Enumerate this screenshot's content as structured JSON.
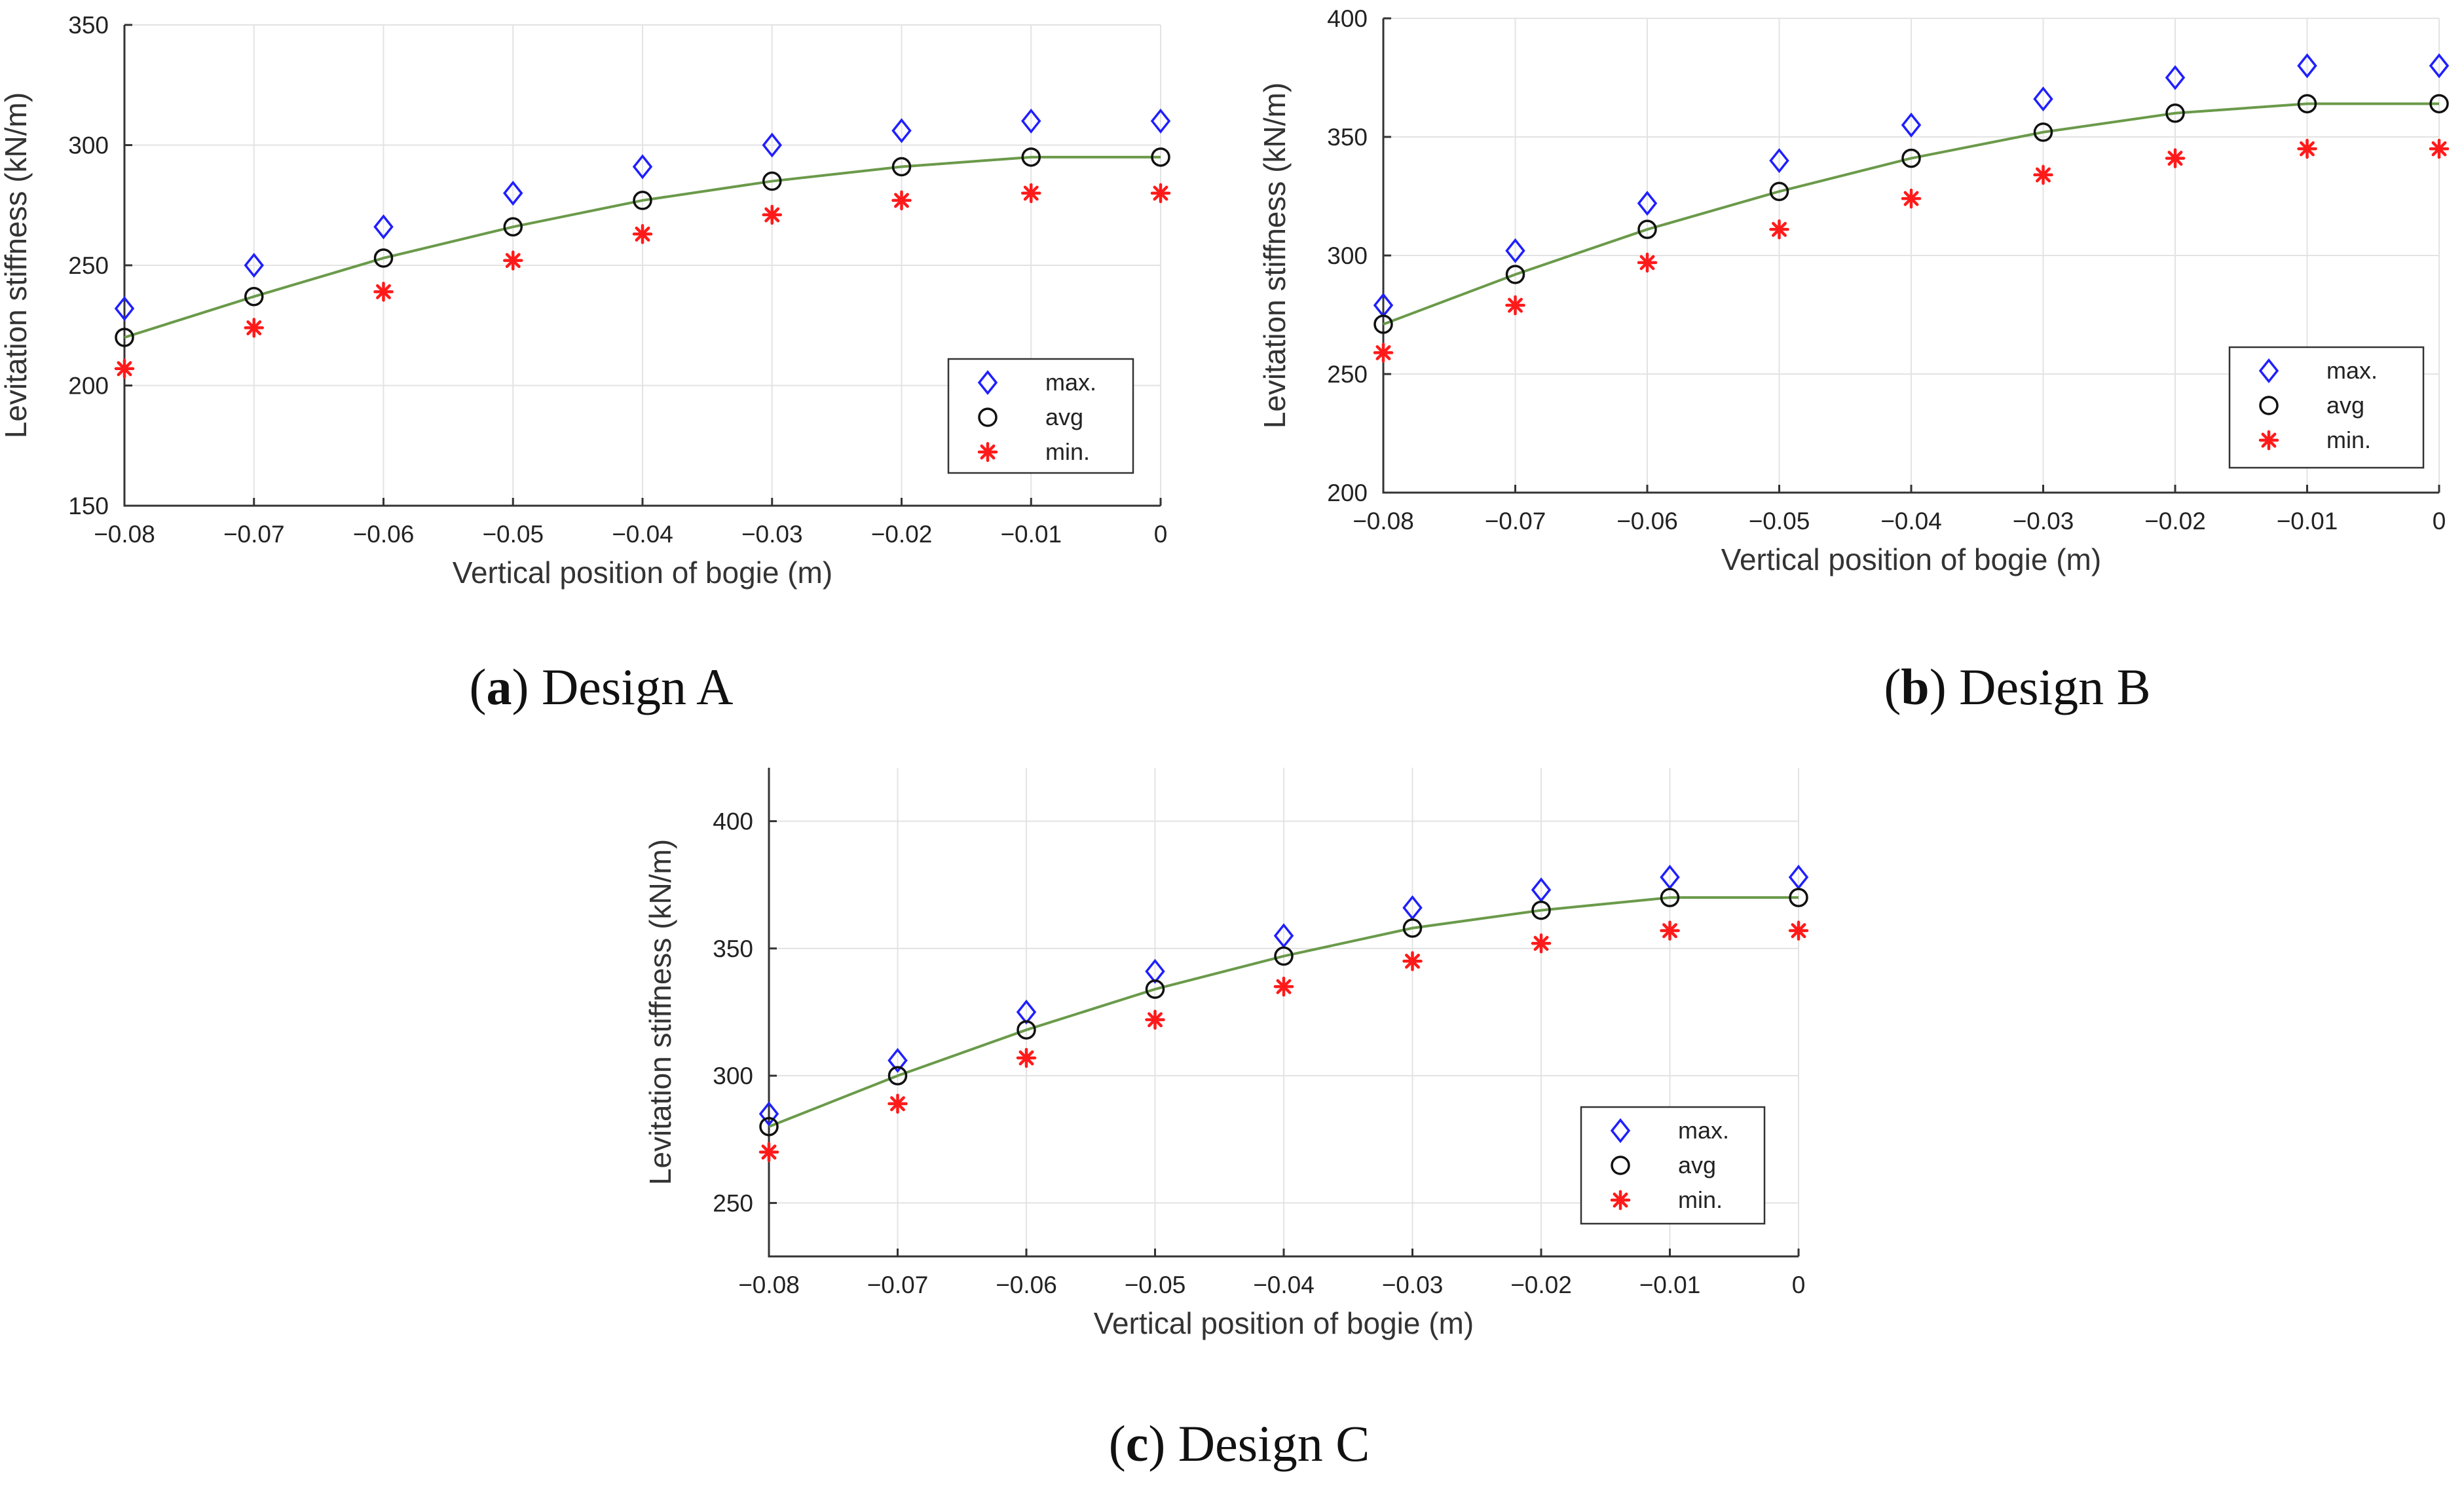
{
  "chart_data": [
    {
      "type": "scatter",
      "caption_letter": "a",
      "caption_text": ") Design A",
      "caption_open": "(",
      "xlabel": "Vertical position of bogie (m)",
      "ylabel": "Levitation stiffness (kN/m)",
      "xlim": [
        -0.08,
        0
      ],
      "ylim": [
        150,
        350
      ],
      "xticks": [
        -0.08,
        -0.07,
        -0.06,
        -0.05,
        -0.04,
        -0.03,
        -0.02,
        -0.01,
        0
      ],
      "xtick_labels": [
        "−0.08",
        "−0.07",
        "−0.06",
        "−0.05",
        "−0.04",
        "−0.03",
        "−0.02",
        "−0.01",
        "0"
      ],
      "yticks": [
        150,
        200,
        250,
        300,
        350
      ],
      "ytick_labels": [
        "150",
        "200",
        "250",
        "300",
        "350"
      ],
      "grid": true,
      "legend_position": "bottom-right",
      "x": [
        -0.08,
        -0.07,
        -0.06,
        -0.05,
        -0.04,
        -0.03,
        -0.02,
        -0.01,
        0
      ],
      "series": [
        {
          "name": "max.",
          "marker": "diamond",
          "color": "#1f1fff",
          "values": [
            232,
            250,
            266,
            280,
            291,
            300,
            306,
            310,
            310
          ]
        },
        {
          "name": "avg",
          "marker": "circle",
          "color": "#111111",
          "values": [
            220,
            237,
            253,
            266,
            277,
            285,
            291,
            295,
            295
          ]
        },
        {
          "name": "min.",
          "marker": "asterisk",
          "color": "#ff1a1a",
          "values": [
            207,
            224,
            239,
            252,
            263,
            271,
            277,
            280,
            280
          ]
        }
      ],
      "fit_line_color": "#6a9a4a"
    },
    {
      "type": "scatter",
      "caption_letter": "b",
      "caption_text": ") Design B",
      "caption_open": "(",
      "xlabel": "Vertical position of bogie (m)",
      "ylabel": "Levitation stiffness (kN/m)",
      "xlim": [
        -0.08,
        0
      ],
      "ylim": [
        200,
        400
      ],
      "xticks": [
        -0.08,
        -0.07,
        -0.06,
        -0.05,
        -0.04,
        -0.03,
        -0.02,
        -0.01,
        0
      ],
      "xtick_labels": [
        "−0.08",
        "−0.07",
        "−0.06",
        "−0.05",
        "−0.04",
        "−0.03",
        "−0.02",
        "−0.01",
        "0"
      ],
      "yticks": [
        200,
        250,
        300,
        350,
        400
      ],
      "ytick_labels": [
        "200",
        "250",
        "300",
        "350",
        "400"
      ],
      "grid": true,
      "legend_position": "bottom-right",
      "x": [
        -0.08,
        -0.07,
        -0.06,
        -0.05,
        -0.04,
        -0.03,
        -0.02,
        -0.01,
        0
      ],
      "series": [
        {
          "name": "max.",
          "marker": "diamond",
          "color": "#1f1fff",
          "values": [
            279,
            302,
            322,
            340,
            355,
            366,
            375,
            380,
            380
          ]
        },
        {
          "name": "avg",
          "marker": "circle",
          "color": "#111111",
          "values": [
            271,
            292,
            311,
            327,
            341,
            352,
            360,
            364,
            364
          ]
        },
        {
          "name": "min.",
          "marker": "asterisk",
          "color": "#ff1a1a",
          "values": [
            259,
            279,
            297,
            311,
            324,
            334,
            341,
            345,
            345
          ]
        }
      ],
      "fit_line_color": "#6a9a4a"
    },
    {
      "type": "scatter",
      "caption_letter": "c",
      "caption_text": ") Design C",
      "caption_open": "(",
      "xlabel": "Vertical position of bogie (m)",
      "ylabel": "Levitation stiffness (kN/m)",
      "xlim": [
        -0.08,
        0
      ],
      "ylim": [
        229,
        421
      ],
      "xticks": [
        -0.08,
        -0.07,
        -0.06,
        -0.05,
        -0.04,
        -0.03,
        -0.02,
        -0.01,
        0
      ],
      "xtick_labels": [
        "−0.08",
        "−0.07",
        "−0.06",
        "−0.05",
        "−0.04",
        "−0.03",
        "−0.02",
        "−0.01",
        "0"
      ],
      "yticks": [
        250,
        300,
        350,
        400
      ],
      "ytick_labels": [
        "250",
        "300",
        "350",
        "400"
      ],
      "grid": true,
      "legend_position": "bottom-right",
      "x": [
        -0.08,
        -0.07,
        -0.06,
        -0.05,
        -0.04,
        -0.03,
        -0.02,
        -0.01,
        0
      ],
      "series": [
        {
          "name": "max.",
          "marker": "diamond",
          "color": "#1f1fff",
          "values": [
            285,
            306,
            325,
            341,
            355,
            366,
            373,
            378,
            378
          ]
        },
        {
          "name": "avg",
          "marker": "circle",
          "color": "#111111",
          "values": [
            280,
            300,
            318,
            334,
            347,
            358,
            365,
            370,
            370
          ]
        },
        {
          "name": "min.",
          "marker": "asterisk",
          "color": "#ff1a1a",
          "values": [
            270,
            289,
            307,
            322,
            335,
            345,
            352,
            357,
            357
          ]
        }
      ],
      "fit_line_color": "#6a9a4a"
    }
  ]
}
